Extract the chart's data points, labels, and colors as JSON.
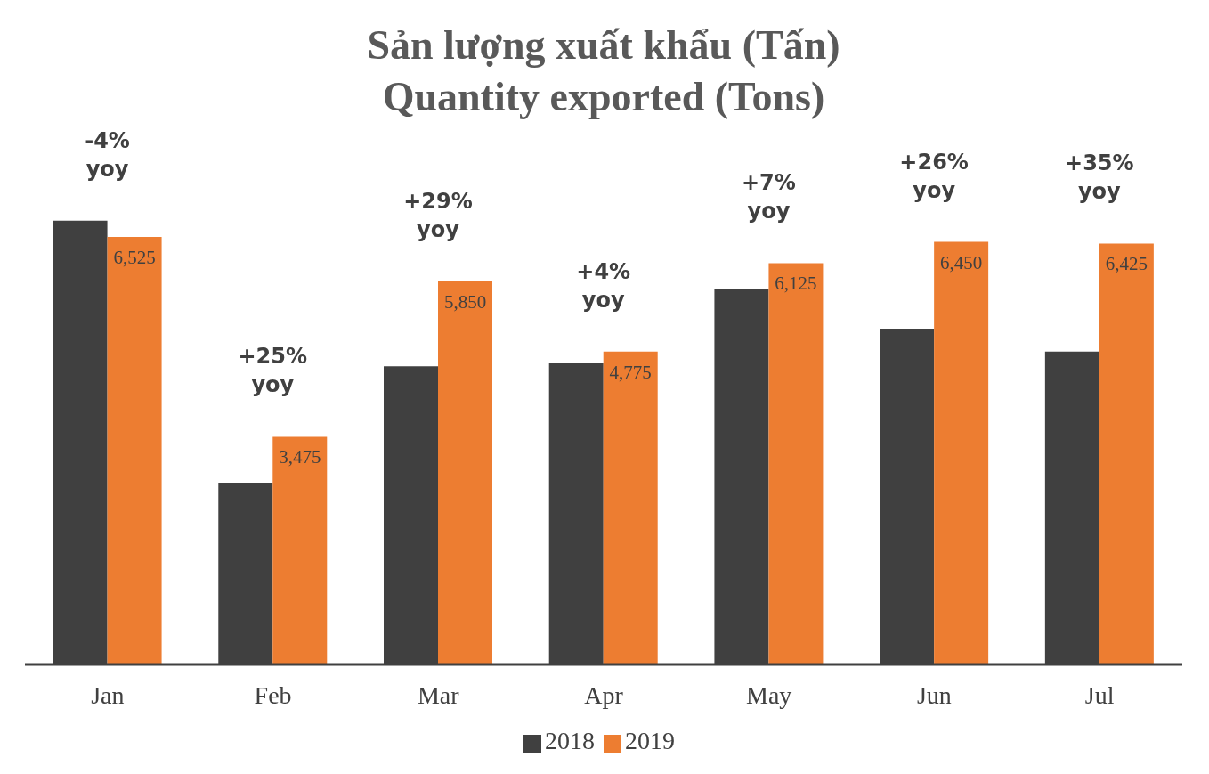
{
  "chart_data": {
    "type": "bar",
    "title": "Sản lượng xuất khẩu (Tấn)",
    "subtitle": "Quantity exported (Tons)",
    "categories": [
      "Jan",
      "Feb",
      "Mar",
      "Apr",
      "May",
      "Jun",
      "Jul"
    ],
    "series": [
      {
        "name": "2018",
        "color": "#404040",
        "values": [
          6775,
          2775,
          4550,
          4600,
          5725,
          5125,
          4775
        ]
      },
      {
        "name": "2019",
        "color": "#ed7d31",
        "values": [
          6525,
          3475,
          5850,
          4775,
          6125,
          6450,
          6425
        ],
        "value_labels": [
          "6,525",
          "3,475",
          "5,850",
          "4,775",
          "6,125",
          "6,450",
          "6,425"
        ]
      }
    ],
    "annotations": [
      "-4% yoy",
      "+25% yoy",
      "+29% yoy",
      "+4% yoy",
      "+7% yoy",
      "+26% yoy",
      "+35% yoy"
    ],
    "grid": false,
    "legend": "bottom"
  }
}
